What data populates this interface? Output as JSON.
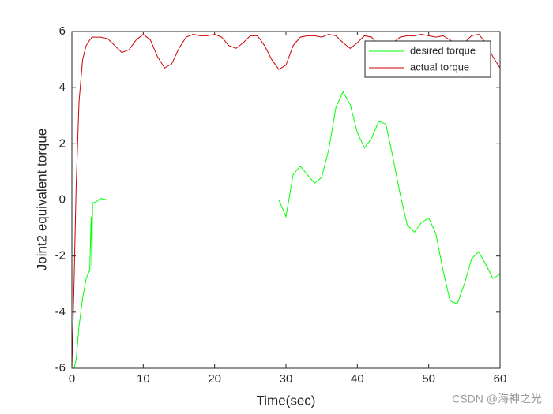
{
  "chart_data": {
    "type": "line",
    "xlabel": "Time(sec)",
    "ylabel": "Joint2 equivalent torque",
    "x": [
      0,
      0.3,
      0.6,
      1,
      1.5,
      2,
      2.5,
      2.7,
      2.8,
      2.9,
      3,
      3.5,
      4,
      5,
      6,
      7,
      8,
      9,
      10,
      11,
      12,
      13,
      14,
      15,
      16,
      17,
      18,
      19,
      20,
      21,
      22,
      23,
      24,
      25,
      26,
      27,
      28,
      29,
      30,
      31,
      32,
      33,
      34,
      35,
      36,
      37,
      38,
      39,
      40,
      41,
      42,
      43,
      44,
      45,
      46,
      47,
      48,
      49,
      50,
      51,
      52,
      53,
      54,
      55,
      56,
      57,
      58,
      59,
      60
    ],
    "series": [
      {
        "name": "desired torque",
        "color": "#00ff00",
        "values": [
          -6,
          -6,
          -5.7,
          -4.5,
          -3.5,
          -2.8,
          -2.5,
          -0.6,
          -2.5,
          -0.1,
          -0.1,
          -0.05,
          0.05,
          0,
          0,
          0,
          0,
          0,
          0,
          0,
          0,
          0,
          0,
          0,
          0,
          0,
          0,
          0,
          0,
          0,
          0,
          0,
          0,
          0,
          0,
          0,
          0,
          0,
          -0.6,
          0.9,
          1.2,
          0.9,
          0.6,
          0.8,
          1.8,
          3.3,
          3.85,
          3.4,
          2.4,
          1.85,
          2.2,
          2.8,
          2.7,
          1.5,
          0.2,
          -0.9,
          -1.15,
          -0.8,
          -0.65,
          -1.2,
          -2.5,
          -3.6,
          -3.7,
          -3,
          -2.1,
          -1.85,
          -2.3,
          -2.8,
          -2.65
        ]
      },
      {
        "name": "actual torque",
        "color": "#cc0000",
        "values": [
          -6,
          -3,
          0.5,
          3.5,
          5,
          5.5,
          5.7,
          5.75,
          5.8,
          5.8,
          5.8,
          5.8,
          5.8,
          5.75,
          5.5,
          5.25,
          5.35,
          5.7,
          5.9,
          5.7,
          5.1,
          4.7,
          4.85,
          5.4,
          5.8,
          5.9,
          5.85,
          5.85,
          5.9,
          5.8,
          5.5,
          5.4,
          5.6,
          5.85,
          5.85,
          5.5,
          5,
          4.65,
          4.8,
          5.5,
          5.8,
          5.85,
          5.85,
          5.8,
          5.9,
          5.85,
          5.6,
          5.4,
          5.6,
          5.85,
          5.8,
          5.5,
          5.35,
          5.6,
          5.8,
          5.85,
          5.85,
          5.9,
          5.85,
          5.8,
          5.85,
          5.7,
          5.5,
          5.6,
          5.85,
          5.9,
          5.6,
          5.1,
          4.7
        ]
      }
    ],
    "xlim": [
      0,
      60
    ],
    "xticks": [
      0,
      10,
      20,
      30,
      40,
      50,
      60
    ],
    "ylim": [
      -6,
      6
    ],
    "yticks": [
      -6,
      -4,
      -2,
      0,
      2,
      4,
      6
    ],
    "legend": "northeast",
    "watermark": "CSDN @海神之光"
  }
}
